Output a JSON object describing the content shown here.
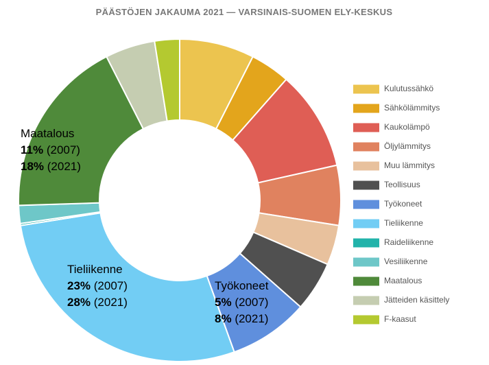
{
  "chart_data": {
    "type": "donut",
    "title": "PÄÄSTÖJEN JAKAUMA 2021 — VARSINAIS-SUOMEN ELY-KESKUS",
    "categories": [
      "Kulutussähkö",
      "Sähkölämmitys",
      "Kaukolämpö",
      "Öljylämmitys",
      "Muu lämmitys",
      "Teollisuus",
      "Työkoneet",
      "Tieliikenne",
      "Raideliikenne",
      "Vesiliikenne",
      "Maatalous",
      "Jätteiden käsittely",
      "F-kaasut"
    ],
    "values": [
      7.5,
      4,
      10,
      6,
      4,
      5,
      8,
      28,
      0.2,
      1.8,
      18,
      5,
      2.5
    ],
    "colors": [
      "#ecc44f",
      "#e3a51c",
      "#df5e55",
      "#e0825f",
      "#e8c19d",
      "#505050",
      "#5f8fdd",
      "#72cdf4",
      "#22b3aa",
      "#6ec7c8",
      "#4f8a3a",
      "#c5cdb1",
      "#b4c930"
    ],
    "legend": "right",
    "annotations": [
      {
        "text": "Maatalous",
        "rows": [
          {
            "share": "11%",
            "year": "(2007)"
          },
          {
            "share": "18%",
            "year": "(2021)"
          }
        ]
      },
      {
        "text": "Tieliikenne",
        "rows": [
          {
            "share": "23%",
            "year": "(2007)"
          },
          {
            "share": "28%",
            "year": "(2021)"
          }
        ]
      },
      {
        "text": "Työkoneet",
        "rows": [
          {
            "share": "5%",
            "year": "(2007)"
          },
          {
            "share": "8%",
            "year": "(2021)"
          }
        ]
      }
    ]
  }
}
